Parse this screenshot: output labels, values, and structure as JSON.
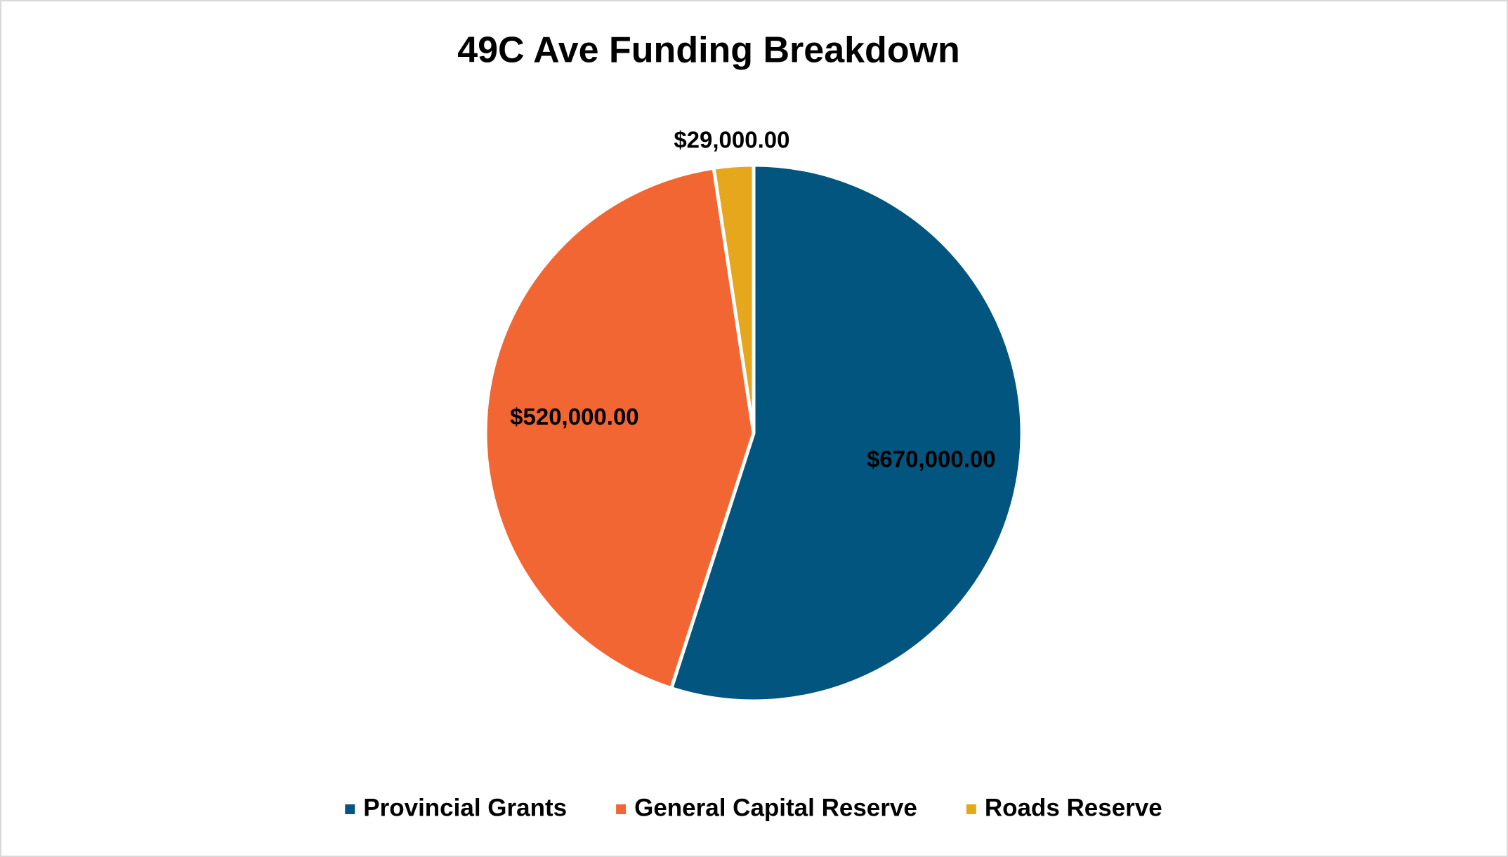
{
  "chart_data": {
    "type": "pie",
    "title": "49C Ave Funding Breakdown",
    "categories": [
      "Provincial Grants",
      "General Capital Reserve",
      "Roads Reserve"
    ],
    "values": [
      670000,
      520000,
      29000
    ],
    "value_labels": [
      "$670,000.00",
      "$520,000.00",
      "$29,000.00"
    ],
    "colors": [
      "#02557f",
      "#f26633",
      "#e6a71d"
    ],
    "legend": "bottom"
  }
}
